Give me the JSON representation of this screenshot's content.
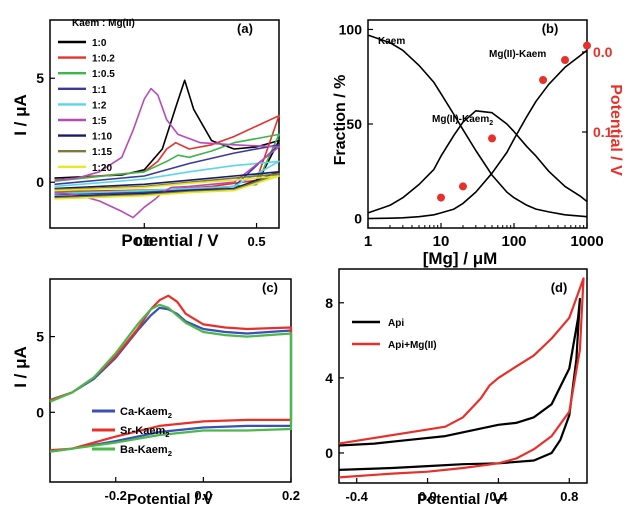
{
  "chart_data": [
    {
      "panel": "(a)",
      "type": "line",
      "xlabel": "Potential / V",
      "ylabel": "I / μA",
      "xlim": [
        -0.42,
        0.6
      ],
      "ylim": [
        -2.2,
        7.8
      ],
      "xticks": [
        0.0,
        0.5
      ],
      "yticks": [
        0,
        5
      ],
      "legend_title": "Kaem : Mg(II)",
      "legend_position": "top-left",
      "series": [
        {
          "name": "1:0",
          "color": "#000000",
          "x": [
            -0.4,
            -0.1,
            0.0,
            0.08,
            0.14,
            0.18,
            0.22,
            0.3,
            0.4,
            0.5,
            0.6,
            0.5,
            0.3,
            0.1,
            -0.1,
            -0.4
          ],
          "y": [
            0.2,
            0.35,
            0.6,
            1.6,
            3.6,
            4.9,
            3.5,
            2.0,
            1.6,
            1.7,
            2.0,
            -0.1,
            -0.3,
            -0.4,
            -0.45,
            -0.5
          ]
        },
        {
          "name": "1:0.2",
          "color": "#e8302a",
          "x": [
            -0.4,
            0.0,
            0.06,
            0.1,
            0.14,
            0.2,
            0.3,
            0.4,
            0.5,
            0.6,
            0.5,
            0.3,
            0.1,
            -0.1,
            -0.4
          ],
          "y": [
            0.1,
            0.5,
            1.0,
            1.6,
            1.9,
            1.6,
            1.8,
            2.2,
            2.7,
            3.2,
            0.1,
            -0.2,
            -0.35,
            -0.4,
            -0.45
          ]
        },
        {
          "name": "1:0.5",
          "color": "#3cb64a",
          "x": [
            -0.4,
            0.0,
            0.1,
            0.15,
            0.2,
            0.3,
            0.4,
            0.5,
            0.6,
            0.5,
            0.3,
            0.1,
            -0.1,
            -0.4
          ],
          "y": [
            0.05,
            0.5,
            1.0,
            1.3,
            1.2,
            1.5,
            1.9,
            2.1,
            2.3,
            -0.1,
            -0.3,
            -0.4,
            -0.45,
            -0.5
          ]
        },
        {
          "name": "1:1",
          "color": "#3a3a9a",
          "x": [
            -0.4,
            0.0,
            0.2,
            0.4,
            0.6,
            0.4,
            0.2,
            0.0,
            -0.4
          ],
          "y": [
            -0.1,
            0.3,
            0.9,
            1.4,
            1.8,
            -0.2,
            -0.35,
            -0.5,
            -0.6
          ]
        },
        {
          "name": "1:2",
          "color": "#5bd6e6",
          "x": [
            -0.4,
            0.0,
            0.2,
            0.4,
            0.6,
            0.4,
            0.2,
            0.0,
            -0.4
          ],
          "y": [
            -0.2,
            0.15,
            0.5,
            0.8,
            1.0,
            -0.2,
            -0.3,
            -0.4,
            -0.55
          ]
        },
        {
          "name": "1:5",
          "color": "#b84ab8",
          "x": [
            -0.4,
            -0.3,
            -0.2,
            -0.1,
            -0.05,
            0.0,
            0.03,
            0.06,
            0.1,
            0.15,
            0.25,
            0.4,
            0.6,
            0.4,
            0.2,
            0.12,
            0.08,
            0.05,
            0.0,
            -0.05,
            -0.1,
            -0.2,
            -0.3,
            -0.4
          ],
          "y": [
            0.1,
            0.2,
            0.5,
            1.2,
            2.5,
            4.0,
            4.5,
            4.2,
            3.0,
            2.3,
            1.9,
            1.8,
            1.7,
            0.0,
            -0.2,
            -0.25,
            -0.5,
            -0.8,
            -1.2,
            -1.7,
            -1.4,
            -0.9,
            -0.6,
            -0.5
          ]
        },
        {
          "name": "1:10",
          "color": "#1a1a6a",
          "x": [
            -0.4,
            0.0,
            0.2,
            0.4,
            0.6,
            0.4,
            0.2,
            0.0,
            -0.4
          ],
          "y": [
            -0.3,
            -0.1,
            0.1,
            0.3,
            0.5,
            -0.3,
            -0.4,
            -0.55,
            -0.7
          ]
        },
        {
          "name": "1:15",
          "color": "#7a7a3a",
          "x": [
            -0.4,
            0.0,
            0.2,
            0.4,
            0.6,
            0.4,
            0.2,
            0.0,
            -0.4
          ],
          "y": [
            -0.35,
            -0.2,
            0.0,
            0.2,
            0.4,
            -0.35,
            -0.45,
            -0.6,
            -0.75
          ]
        },
        {
          "name": "1:20",
          "color": "#e8e82a",
          "x": [
            -0.4,
            0.0,
            0.2,
            0.4,
            0.6,
            0.4,
            0.2,
            0.0,
            -0.4
          ],
          "y": [
            -0.4,
            -0.25,
            -0.05,
            0.1,
            0.3,
            -0.4,
            -0.5,
            -0.65,
            -0.8
          ]
        }
      ]
    },
    {
      "panel": "(b)",
      "type": "line",
      "xlabel": "[Mg] / μM",
      "ylabel": "Fraction / %",
      "ylabel_right": "Potential / V",
      "x_scale": "log",
      "xlim": [
        1,
        1000
      ],
      "ylim": [
        -5,
        105
      ],
      "xticks": [
        1,
        10,
        100,
        1000
      ],
      "xtick_labels": [
        "1",
        "10",
        "100",
        "1000"
      ],
      "yticks": [
        0,
        50,
        100
      ],
      "yticks_right": [
        0.1,
        0.0
      ],
      "yticks_right_labels": [
        "0.1",
        "0.0"
      ],
      "ylim_right": [
        0.22,
        -0.04
      ],
      "annotations": [
        "Kaem",
        "Mg(II)-Kaem2",
        "Mg(II)-Kaem"
      ],
      "series": [
        {
          "name": "Kaem",
          "color": "#000000",
          "x": [
            1,
            2,
            3,
            5,
            8,
            10,
            15,
            20,
            30,
            50,
            80,
            100,
            150,
            200,
            300,
            500,
            800,
            1000
          ],
          "y": [
            97,
            93,
            89,
            81,
            72,
            66,
            55,
            47,
            36,
            23,
            14,
            11,
            7,
            5,
            3.5,
            2,
            1.3,
            1
          ]
        },
        {
          "name": "Mg(II)-Kaem2",
          "color": "#000000",
          "x": [
            1,
            2,
            3,
            5,
            8,
            10,
            15,
            20,
            30,
            50,
            80,
            100,
            150,
            200,
            300,
            500,
            800,
            1000
          ],
          "y": [
            3,
            7,
            11,
            18,
            26,
            33,
            44,
            51,
            57,
            56,
            50,
            46,
            38,
            33,
            25,
            17,
            12,
            9
          ]
        },
        {
          "name": "Mg(II)-Kaem",
          "color": "#000000",
          "x": [
            1,
            2,
            3,
            5,
            8,
            10,
            15,
            20,
            30,
            50,
            80,
            100,
            150,
            200,
            300,
            500,
            800,
            1000
          ],
          "y": [
            0,
            0.2,
            0.4,
            1,
            2,
            3,
            5,
            8,
            14,
            24,
            35,
            42,
            54,
            62,
            71,
            80,
            86,
            89
          ]
        },
        {
          "name": "Potential",
          "type": "scatter",
          "axis": "right",
          "color": "#e8302a",
          "x": [
            10,
            20,
            50,
            250,
            500,
            1000
          ],
          "y": [
            0.182,
            0.168,
            0.108,
            0.035,
            0.01,
            -0.008
          ]
        }
      ]
    },
    {
      "panel": "(c)",
      "type": "line",
      "xlabel": "Potential / V",
      "ylabel": "I / μA",
      "xlim": [
        -0.35,
        0.2
      ],
      "ylim": [
        -4.6,
        8.8
      ],
      "xticks": [
        -0.2,
        0.0,
        0.2
      ],
      "yticks": [
        0,
        5
      ],
      "legend_position": "center-left",
      "series": [
        {
          "name": "Ca-Kaem2",
          "color": "#3a4fb8",
          "x": [
            -0.35,
            -0.3,
            -0.25,
            -0.2,
            -0.15,
            -0.12,
            -0.1,
            -0.08,
            -0.06,
            -0.04,
            0.0,
            0.05,
            0.1,
            0.2,
            0.2,
            0.1,
            0.0,
            -0.1,
            -0.2,
            -0.3,
            -0.35
          ],
          "y": [
            0.8,
            1.3,
            2.2,
            3.6,
            5.4,
            6.4,
            6.9,
            6.8,
            6.5,
            6.0,
            5.5,
            5.3,
            5.2,
            5.4,
            -0.9,
            -0.9,
            -1.0,
            -1.3,
            -1.9,
            -2.4,
            -2.6
          ]
        },
        {
          "name": "Sr-Kaem2",
          "color": "#e8302a",
          "x": [
            -0.35,
            -0.3,
            -0.25,
            -0.2,
            -0.15,
            -0.12,
            -0.1,
            -0.08,
            -0.06,
            -0.04,
            0.0,
            0.05,
            0.1,
            0.2,
            0.2,
            0.1,
            0.0,
            -0.1,
            -0.2,
            -0.3,
            -0.35
          ],
          "y": [
            0.8,
            1.3,
            2.3,
            3.7,
            5.5,
            6.8,
            7.4,
            7.7,
            7.3,
            6.5,
            5.8,
            5.6,
            5.5,
            5.6,
            -0.5,
            -0.5,
            -0.6,
            -0.9,
            -1.6,
            -2.4,
            -2.5
          ]
        },
        {
          "name": "Ba-Kaem2",
          "color": "#4ab84a",
          "x": [
            -0.35,
            -0.3,
            -0.25,
            -0.2,
            -0.15,
            -0.12,
            -0.1,
            -0.08,
            -0.06,
            -0.04,
            0.0,
            0.05,
            0.1,
            0.2,
            0.2,
            0.1,
            0.0,
            -0.1,
            -0.2,
            -0.3,
            -0.35
          ],
          "y": [
            0.7,
            1.3,
            2.3,
            3.9,
            5.8,
            6.8,
            7.1,
            6.9,
            6.4,
            5.9,
            5.3,
            5.1,
            5.0,
            5.2,
            -1.1,
            -1.2,
            -1.2,
            -1.5,
            -2.0,
            -2.4,
            -2.6
          ]
        }
      ]
    },
    {
      "panel": "(d)",
      "type": "line",
      "xlabel": "Potential / V",
      "xlim": [
        -0.5,
        0.9
      ],
      "ylim": [
        -1.6,
        9.8
      ],
      "xticks": [
        -0.4,
        0.0,
        0.4,
        0.8
      ],
      "yticks": [
        0,
        4,
        8
      ],
      "legend_position": "upper-left",
      "series": [
        {
          "name": "Api",
          "color": "#000000",
          "x": [
            -0.5,
            -0.3,
            -0.1,
            0.1,
            0.2,
            0.3,
            0.4,
            0.5,
            0.6,
            0.7,
            0.8,
            0.85,
            0.86,
            0.84,
            0.8,
            0.75,
            0.7,
            0.6,
            0.4,
            0.2,
            0.0,
            -0.2,
            -0.5
          ],
          "y": [
            0.4,
            0.5,
            0.7,
            0.9,
            1.1,
            1.3,
            1.5,
            1.6,
            1.9,
            2.6,
            4.5,
            7.2,
            8.2,
            5.0,
            2.0,
            0.7,
            0.0,
            -0.4,
            -0.55,
            -0.6,
            -0.7,
            -0.8,
            -0.9
          ]
        },
        {
          "name": "Api+Mg(II)",
          "color": "#e8302a",
          "x": [
            -0.5,
            -0.3,
            -0.1,
            0.1,
            0.2,
            0.3,
            0.35,
            0.4,
            0.5,
            0.6,
            0.7,
            0.8,
            0.85,
            0.88,
            0.86,
            0.8,
            0.7,
            0.6,
            0.5,
            0.4,
            0.2,
            0.0,
            -0.2,
            -0.5
          ],
          "y": [
            0.5,
            0.8,
            1.1,
            1.4,
            1.9,
            2.9,
            3.6,
            4.0,
            4.6,
            5.2,
            6.1,
            7.2,
            8.5,
            9.3,
            5.5,
            2.2,
            0.9,
            0.2,
            -0.3,
            -0.55,
            -0.8,
            -1.0,
            -1.1,
            -1.3
          ]
        }
      ]
    }
  ]
}
